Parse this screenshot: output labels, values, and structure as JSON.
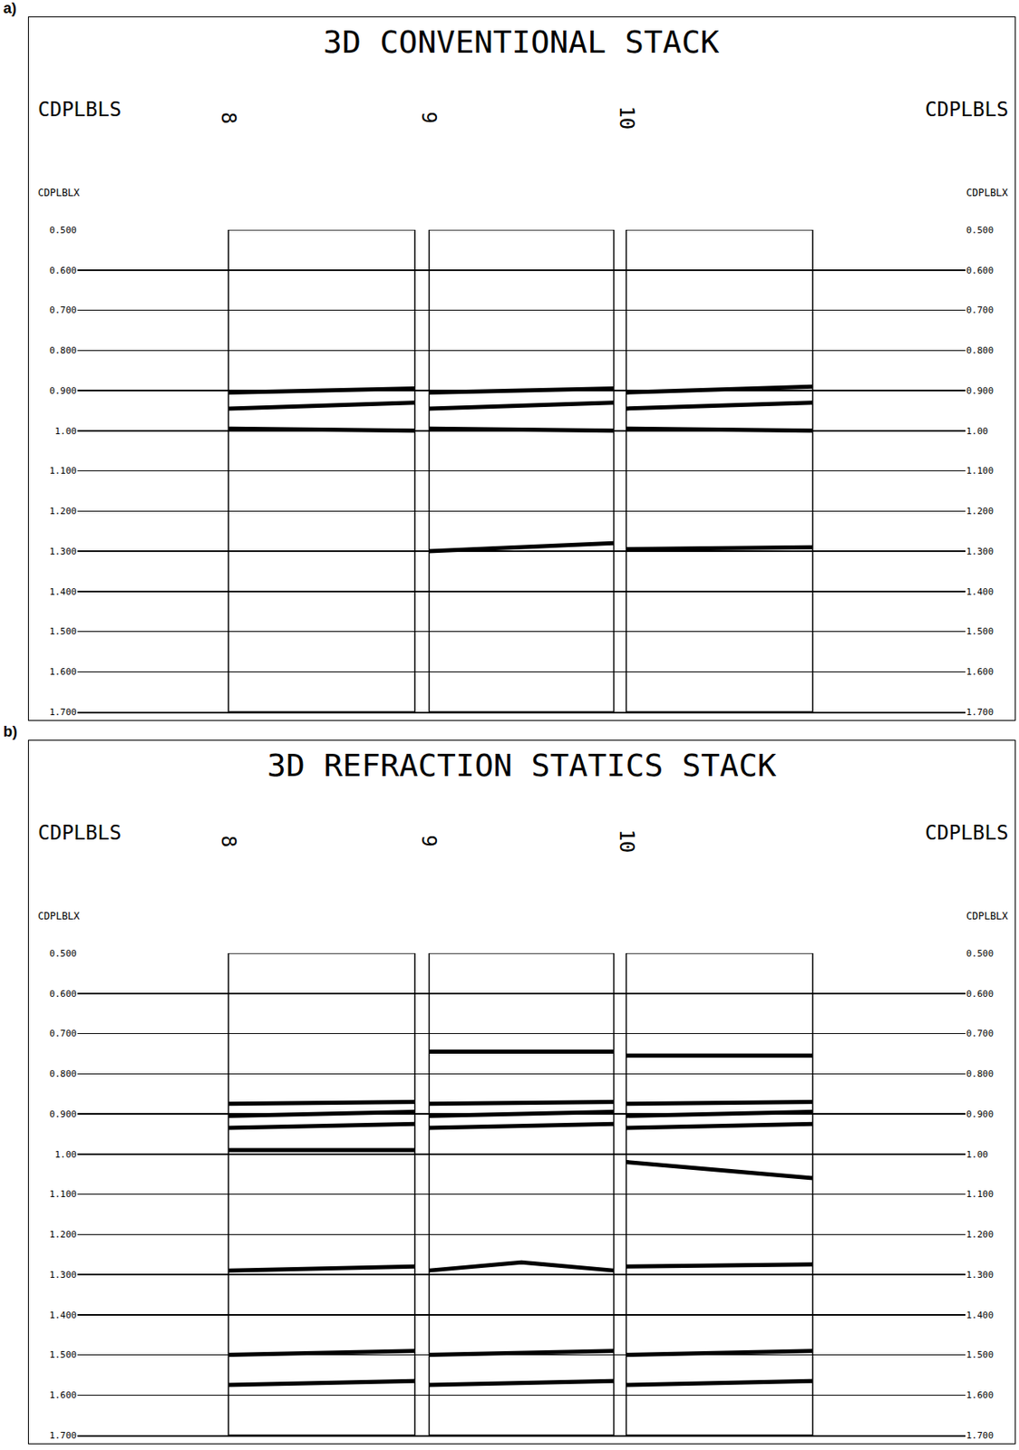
{
  "chart_data": [
    {
      "type": "line",
      "panel_label": "a)",
      "title": "3D CONVENTIONAL STACK",
      "label_left": "CDPLBLS",
      "label_right": "CDPLBLS",
      "sublabel": "CDPLBLX",
      "gathers": [
        {
          "label": "8",
          "x0": 17,
          "x1": 38
        },
        {
          "label": "9",
          "x0": 39.6,
          "x1": 60.4
        },
        {
          "label": "10",
          "x0": 61.8,
          "x1": 82.8
        }
      ],
      "xlim": [
        0,
        100
      ],
      "ylim": [
        0.5,
        1.7
      ],
      "yticks": [
        {
          "value": 0.5,
          "label": "0.500"
        },
        {
          "value": 0.6,
          "label": "0.600"
        },
        {
          "value": 0.7,
          "label": "0.700"
        },
        {
          "value": 0.8,
          "label": "0.800"
        },
        {
          "value": 0.9,
          "label": "0.900"
        },
        {
          "value": 1.0,
          "label": "1.00"
        },
        {
          "value": 1.1,
          "label": "1.100"
        },
        {
          "value": 1.2,
          "label": "1.200"
        },
        {
          "value": 1.3,
          "label": "1.300"
        },
        {
          "value": 1.4,
          "label": "1.400"
        },
        {
          "value": 1.5,
          "label": "1.500"
        },
        {
          "value": 1.6,
          "label": "1.600"
        },
        {
          "value": 1.7,
          "label": "1.700"
        }
      ],
      "grid": true,
      "tick_labels": "y",
      "color": "#000000",
      "line_style": "solid",
      "series": [
        {
          "x": [
            17,
            38,
            null,
            39.6,
            60.4,
            null,
            61.8,
            82.8
          ],
          "values": [
            0.905,
            0.895,
            null,
            0.905,
            0.895,
            null,
            0.905,
            0.89
          ]
        },
        {
          "x": [
            17,
            38,
            null,
            39.6,
            60.4,
            null,
            61.8,
            82.8
          ],
          "values": [
            0.945,
            0.93,
            null,
            0.945,
            0.93,
            null,
            0.945,
            0.93
          ]
        },
        {
          "x": [
            17,
            38,
            null,
            39.6,
            60.4,
            null,
            61.8,
            82.8
          ],
          "values": [
            0.995,
            1.0,
            null,
            0.995,
            1.0,
            null,
            0.995,
            1.0
          ]
        },
        {
          "x": [
            39.6,
            60.4,
            null,
            61.8,
            82.8
          ],
          "values": [
            1.3,
            1.28,
            null,
            1.295,
            1.29
          ]
        }
      ]
    },
    {
      "type": "line",
      "panel_label": "b)",
      "title": "3D REFRACTION STATICS STACK",
      "label_left": "CDPLBLS",
      "label_right": "CDPLBLS",
      "sublabel": "CDPLBLX",
      "gathers": [
        {
          "label": "8",
          "x0": 17,
          "x1": 38
        },
        {
          "label": "9",
          "x0": 39.6,
          "x1": 60.4
        },
        {
          "label": "10",
          "x0": 61.8,
          "x1": 82.8
        }
      ],
      "xlim": [
        0,
        100
      ],
      "ylim": [
        0.5,
        1.7
      ],
      "yticks": [
        {
          "value": 0.5,
          "label": "0.500"
        },
        {
          "value": 0.6,
          "label": "0.600"
        },
        {
          "value": 0.7,
          "label": "0.700"
        },
        {
          "value": 0.8,
          "label": "0.800"
        },
        {
          "value": 0.9,
          "label": "0.900"
        },
        {
          "value": 1.0,
          "label": "1.00"
        },
        {
          "value": 1.1,
          "label": "1.100"
        },
        {
          "value": 1.2,
          "label": "1.200"
        },
        {
          "value": 1.3,
          "label": "1.300"
        },
        {
          "value": 1.4,
          "label": "1.400"
        },
        {
          "value": 1.5,
          "label": "1.500"
        },
        {
          "value": 1.6,
          "label": "1.600"
        },
        {
          "value": 1.7,
          "label": "1.700"
        }
      ],
      "grid": true,
      "tick_labels": "y",
      "color": "#000000",
      "line_style": "solid",
      "series": [
        {
          "x": [
            39.6,
            60.4,
            null,
            61.8,
            82.8
          ],
          "values": [
            0.745,
            0.745,
            null,
            0.755,
            0.755
          ]
        },
        {
          "x": [
            17,
            38,
            null,
            39.6,
            60.4,
            null,
            61.8,
            82.8
          ],
          "values": [
            0.875,
            0.87,
            null,
            0.875,
            0.87,
            null,
            0.875,
            0.87
          ]
        },
        {
          "x": [
            17,
            38,
            null,
            39.6,
            60.4,
            null,
            61.8,
            82.8
          ],
          "values": [
            0.905,
            0.895,
            null,
            0.905,
            0.895,
            null,
            0.905,
            0.895
          ]
        },
        {
          "x": [
            17,
            38,
            null,
            39.6,
            60.4,
            null,
            61.8,
            82.8
          ],
          "values": [
            0.935,
            0.925,
            null,
            0.935,
            0.925,
            null,
            0.935,
            0.925
          ]
        },
        {
          "x": [
            17,
            38,
            null,
            61.8,
            82.8
          ],
          "values": [
            0.99,
            0.99,
            null,
            1.02,
            1.06
          ]
        },
        {
          "x": [
            17,
            38,
            null,
            39.6,
            50,
            60.4,
            null,
            61.8,
            82.8
          ],
          "values": [
            1.29,
            1.28,
            null,
            1.29,
            1.27,
            1.29,
            null,
            1.28,
            1.275
          ]
        },
        {
          "x": [
            17,
            38,
            null,
            39.6,
            60.4,
            null,
            61.8,
            82.8
          ],
          "values": [
            1.5,
            1.49,
            null,
            1.5,
            1.49,
            null,
            1.5,
            1.49
          ]
        },
        {
          "x": [
            17,
            38,
            null,
            39.6,
            60.4,
            null,
            61.8,
            82.8
          ],
          "values": [
            1.575,
            1.565,
            null,
            1.575,
            1.565,
            null,
            1.575,
            1.565
          ]
        }
      ]
    }
  ]
}
